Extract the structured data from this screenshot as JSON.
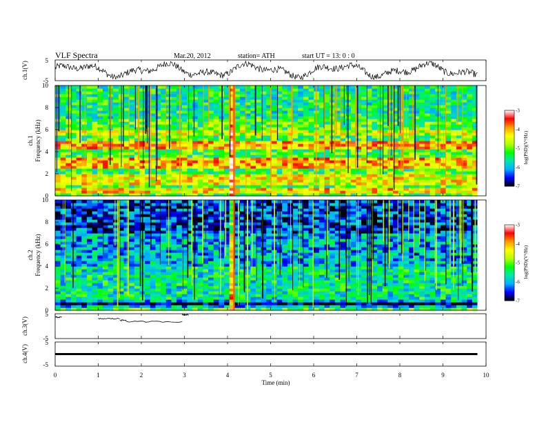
{
  "header": {
    "title": "VLF  Spectra",
    "date": "Mar.20, 2012",
    "station": "station= ATH",
    "start": "start  UT  =    13: 0   : 0"
  },
  "chart_data": {
    "type": "heatmap",
    "x": {
      "label": "Time  (min)",
      "range": [
        0,
        10
      ],
      "ticks": [
        "0",
        "1",
        "2",
        "3",
        "4",
        "5",
        "6",
        "7",
        "8",
        "9",
        "10"
      ],
      "data_end": 9.8
    },
    "panels": [
      {
        "kind": "waveform",
        "ylabel": "ch.1(V)",
        "ylim": [
          -5,
          5
        ],
        "yticks": [
          "5",
          "-5"
        ]
      },
      {
        "kind": "spectrogram",
        "ylabel_channel": "ch.1",
        "ylabel": "Frequency  (kHz)",
        "ylim": [
          0,
          10
        ],
        "yticks": [
          "0",
          "2",
          "4",
          "6",
          "8",
          "10"
        ],
        "colorbar": {
          "label": "log(PSD)(V²/Hz)",
          "range": [
            -7,
            -3
          ],
          "ticks": [
            "-3",
            "-4",
            "-5",
            "-6",
            "-7"
          ],
          "colors": [
            "#000000",
            "#0000ff",
            "#00b0ff",
            "#00e6b0",
            "#00ff00",
            "#b4ff00",
            "#ffff00",
            "#ff9900",
            "#ff0000",
            "#ffffff"
          ]
        },
        "base_log_psd": -5.2,
        "bands": [
          {
            "khz": [
              0.3,
              0.7
            ],
            "log_psd": -4.2
          },
          {
            "khz": [
              1.0,
              2.0
            ],
            "log_psd": -4.4
          },
          {
            "khz": [
              2.5,
              3.4
            ],
            "log_psd": -4.1
          },
          {
            "khz": [
              4.2,
              5.0
            ],
            "log_psd": -4.0
          },
          {
            "khz": [
              5.5,
              6.0
            ],
            "log_psd": -4.6
          },
          {
            "khz": [
              7.0,
              10.0
            ],
            "log_psd": -5.5
          }
        ],
        "event_min": 4.13
      },
      {
        "kind": "spectrogram",
        "ylabel_channel": "ch.2",
        "ylabel": "Frequency  (kHz)",
        "ylim": [
          0,
          10
        ],
        "yticks": [
          "0",
          "2",
          "4",
          "6",
          "8",
          "10"
        ],
        "colorbar": {
          "label": "log(PSD)(V²/Hz)",
          "range": [
            -7,
            -3
          ],
          "ticks": [
            "-3",
            "-4",
            "-5",
            "-6",
            "-7"
          ],
          "colors": [
            "#000000",
            "#0000ff",
            "#00b0ff",
            "#00e6b0",
            "#00ff00",
            "#b4ff00",
            "#ffff00",
            "#ff9900",
            "#ff0000",
            "#ffffff"
          ]
        },
        "base_log_psd": -5.9,
        "bands": [
          {
            "khz": [
              0.0,
              0.3
            ],
            "log_psd": -5.2
          },
          {
            "khz": [
              0.4,
              0.8
            ],
            "log_psd": -6.9
          },
          {
            "khz": [
              1.0,
              4.0
            ],
            "log_psd": -5.6
          },
          {
            "khz": [
              4.5,
              7.0
            ],
            "log_psd": -6.0
          },
          {
            "khz": [
              7.0,
              10.0
            ],
            "log_psd": -6.4
          }
        ],
        "event_min": 4.13
      },
      {
        "kind": "step",
        "ylabel": "ch.3(V)",
        "ylim": [
          -5,
          5
        ],
        "yticks": [
          "5",
          "-5"
        ],
        "segments": [
          {
            "t": [
              0.0,
              0.15
            ],
            "v": 3.6
          },
          {
            "t": [
              1.0,
              1.5
            ],
            "v": 3.0
          },
          {
            "t": [
              1.5,
              1.65
            ],
            "v": 2.4
          },
          {
            "t": [
              1.65,
              2.95
            ],
            "v": 1.8
          },
          {
            "t": [
              2.95,
              3.1
            ],
            "v": 4.6
          }
        ]
      },
      {
        "kind": "flat",
        "ylabel": "ch.4(V)",
        "ylim": [
          -5,
          5
        ],
        "yticks": [
          "5",
          "-5"
        ],
        "value": 0.0
      }
    ]
  }
}
